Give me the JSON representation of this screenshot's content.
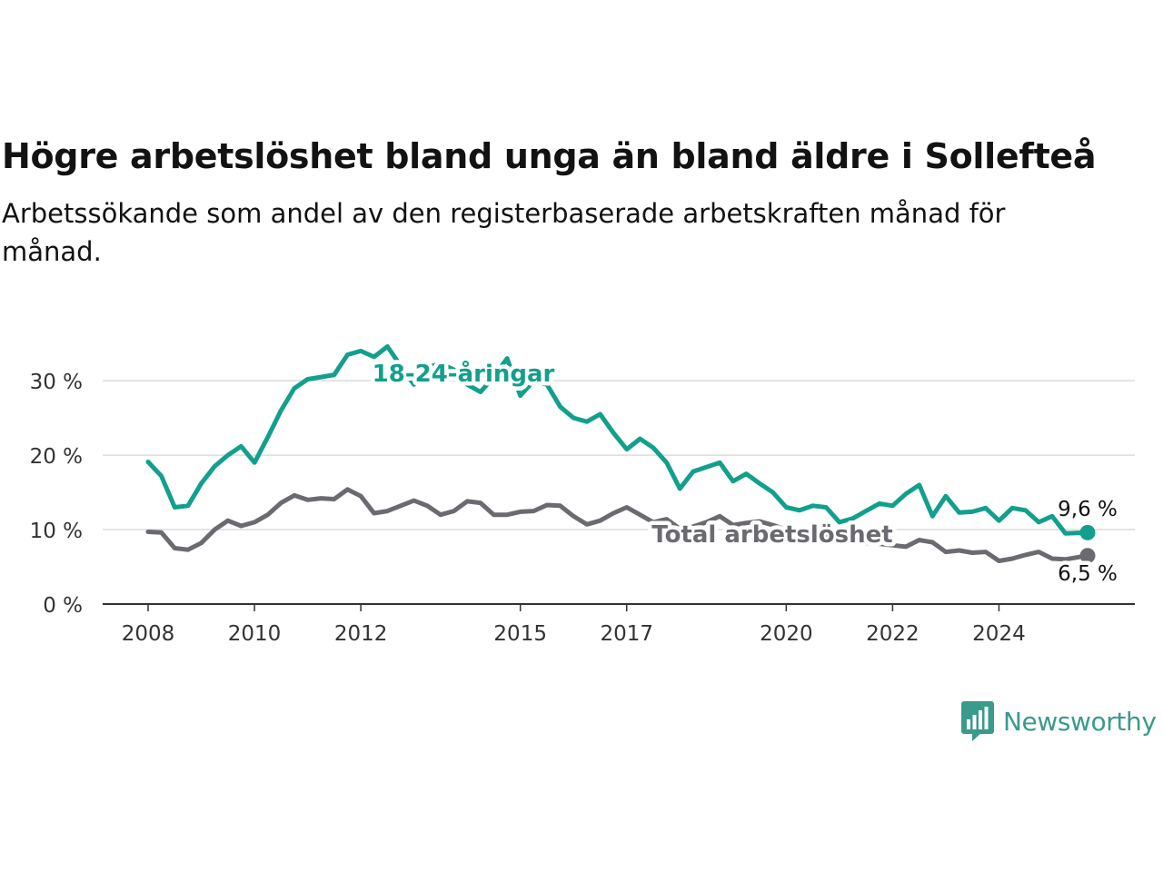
{
  "title": "Högre arbetslöshet bland unga än bland äldre i Sollefteå",
  "subtitle": "Arbetssökande som andel av den registerbaserade arbetskraften månad för månad.",
  "brand": "Newsworthy",
  "colors": {
    "youth": "#12a08c",
    "total": "#6b6a70",
    "grid": "#dcdcdc",
    "axis": "#333333",
    "text": "#121212"
  },
  "chart_data": {
    "type": "line",
    "title": "Högre arbetslöshet bland unga än bland äldre i Sollefteå",
    "subtitle": "Arbetssökande som andel av den registerbaserade arbetskraften månad för månad.",
    "xlabel": "",
    "ylabel": "",
    "xlim": [
      "2008-01",
      "2025-09"
    ],
    "ylim": [
      0,
      36
    ],
    "yticks": [
      0,
      10,
      20,
      30
    ],
    "ytick_labels": [
      "0 %",
      "10 %",
      "20 %",
      "30 %"
    ],
    "xticks": [
      "2008",
      "2010",
      "2012",
      "2015",
      "2017",
      "2020",
      "2022",
      "2024"
    ],
    "grid": true,
    "legend": "inline labels",
    "series": [
      {
        "name": "18-24-åringar",
        "end_label": "9,6 %",
        "points": [
          [
            "2008-01",
            19.1
          ],
          [
            "2008-04",
            17.2
          ],
          [
            "2008-07",
            13.0
          ],
          [
            "2008-10",
            13.2
          ],
          [
            "2009-01",
            16.2
          ],
          [
            "2009-04",
            18.5
          ],
          [
            "2009-07",
            20.0
          ],
          [
            "2009-10",
            21.2
          ],
          [
            "2010-01",
            19.0
          ],
          [
            "2010-04",
            22.4
          ],
          [
            "2010-07",
            26.0
          ],
          [
            "2010-10",
            29.0
          ],
          [
            "2011-01",
            30.2
          ],
          [
            "2011-04",
            30.5
          ],
          [
            "2011-07",
            30.8
          ],
          [
            "2011-10",
            33.5
          ],
          [
            "2012-01",
            34.0
          ],
          [
            "2012-04",
            33.2
          ],
          [
            "2012-07",
            34.6
          ],
          [
            "2012-10",
            32.0
          ],
          [
            "2013-01",
            29.5
          ],
          [
            "2013-04",
            31.8
          ],
          [
            "2013-07",
            32.3
          ],
          [
            "2013-10",
            31.5
          ],
          [
            "2014-01",
            29.5
          ],
          [
            "2014-04",
            28.5
          ],
          [
            "2014-07",
            30.5
          ],
          [
            "2014-10",
            33.0
          ],
          [
            "2015-01",
            28.0
          ],
          [
            "2015-04",
            30.0
          ],
          [
            "2015-07",
            29.5
          ],
          [
            "2015-10",
            26.5
          ],
          [
            "2016-01",
            25.0
          ],
          [
            "2016-04",
            24.5
          ],
          [
            "2016-07",
            25.5
          ],
          [
            "2016-10",
            23.0
          ],
          [
            "2017-01",
            20.8
          ],
          [
            "2017-04",
            22.2
          ],
          [
            "2017-07",
            21.0
          ],
          [
            "2017-10",
            19.0
          ],
          [
            "2018-01",
            15.5
          ],
          [
            "2018-04",
            17.8
          ],
          [
            "2018-07",
            18.4
          ],
          [
            "2018-10",
            19.0
          ],
          [
            "2019-01",
            16.5
          ],
          [
            "2019-04",
            17.5
          ],
          [
            "2019-07",
            16.2
          ],
          [
            "2019-10",
            15.0
          ],
          [
            "2020-01",
            13.0
          ],
          [
            "2020-04",
            12.6
          ],
          [
            "2020-07",
            13.2
          ],
          [
            "2020-10",
            13.0
          ],
          [
            "2021-01",
            11.0
          ],
          [
            "2021-04",
            11.5
          ],
          [
            "2021-07",
            12.5
          ],
          [
            "2021-10",
            13.5
          ],
          [
            "2022-01",
            13.2
          ],
          [
            "2022-04",
            14.8
          ],
          [
            "2022-07",
            16.0
          ],
          [
            "2022-10",
            11.8
          ],
          [
            "2023-01",
            14.5
          ],
          [
            "2023-04",
            12.3
          ],
          [
            "2023-07",
            12.4
          ],
          [
            "2023-10",
            12.9
          ],
          [
            "2024-01",
            11.2
          ],
          [
            "2024-04",
            12.9
          ],
          [
            "2024-07",
            12.6
          ],
          [
            "2024-10",
            11.0
          ],
          [
            "2025-01",
            11.8
          ],
          [
            "2025-04",
            9.5
          ],
          [
            "2025-09",
            9.6
          ]
        ]
      },
      {
        "name": "Total arbetslöshet",
        "end_label": "6,5 %",
        "points": [
          [
            "2008-01",
            9.7
          ],
          [
            "2008-04",
            9.6
          ],
          [
            "2008-07",
            7.5
          ],
          [
            "2008-10",
            7.3
          ],
          [
            "2009-01",
            8.2
          ],
          [
            "2009-04",
            10.0
          ],
          [
            "2009-07",
            11.2
          ],
          [
            "2009-10",
            10.5
          ],
          [
            "2010-01",
            11.0
          ],
          [
            "2010-04",
            12.0
          ],
          [
            "2010-07",
            13.6
          ],
          [
            "2010-10",
            14.6
          ],
          [
            "2011-01",
            14.0
          ],
          [
            "2011-04",
            14.2
          ],
          [
            "2011-07",
            14.1
          ],
          [
            "2011-10",
            15.4
          ],
          [
            "2012-01",
            14.5
          ],
          [
            "2012-04",
            12.2
          ],
          [
            "2012-07",
            12.5
          ],
          [
            "2012-10",
            13.2
          ],
          [
            "2013-01",
            13.9
          ],
          [
            "2013-04",
            13.2
          ],
          [
            "2013-07",
            12.0
          ],
          [
            "2013-10",
            12.5
          ],
          [
            "2014-01",
            13.8
          ],
          [
            "2014-04",
            13.6
          ],
          [
            "2014-07",
            12.0
          ],
          [
            "2014-10",
            12.0
          ],
          [
            "2015-01",
            12.4
          ],
          [
            "2015-04",
            12.5
          ],
          [
            "2015-07",
            13.3
          ],
          [
            "2015-10",
            13.2
          ],
          [
            "2016-01",
            11.8
          ],
          [
            "2016-04",
            10.7
          ],
          [
            "2016-07",
            11.2
          ],
          [
            "2016-10",
            12.2
          ],
          [
            "2017-01",
            13.0
          ],
          [
            "2017-04",
            12.0
          ],
          [
            "2017-07",
            11.0
          ],
          [
            "2017-10",
            11.4
          ],
          [
            "2018-01",
            10.1
          ],
          [
            "2018-04",
            10.4
          ],
          [
            "2018-07",
            11.0
          ],
          [
            "2018-10",
            11.8
          ],
          [
            "2019-01",
            10.6
          ],
          [
            "2019-04",
            10.9
          ],
          [
            "2019-07",
            11.1
          ],
          [
            "2019-10",
            10.6
          ],
          [
            "2020-01",
            10.0
          ],
          [
            "2020-04",
            9.5
          ],
          [
            "2020-07",
            9.2
          ],
          [
            "2020-10",
            9.0
          ],
          [
            "2021-01",
            8.5
          ],
          [
            "2021-04",
            8.4
          ],
          [
            "2021-07",
            8.2
          ],
          [
            "2021-10",
            8.1
          ],
          [
            "2022-01",
            7.9
          ],
          [
            "2022-04",
            7.7
          ],
          [
            "2022-07",
            8.6
          ],
          [
            "2022-10",
            8.3
          ],
          [
            "2023-01",
            7.0
          ],
          [
            "2023-04",
            7.2
          ],
          [
            "2023-07",
            6.9
          ],
          [
            "2023-10",
            7.0
          ],
          [
            "2024-01",
            5.8
          ],
          [
            "2024-04",
            6.1
          ],
          [
            "2024-07",
            6.6
          ],
          [
            "2024-10",
            7.0
          ],
          [
            "2025-01",
            6.1
          ],
          [
            "2025-04",
            6.0
          ],
          [
            "2025-09",
            6.5
          ]
        ]
      }
    ]
  }
}
